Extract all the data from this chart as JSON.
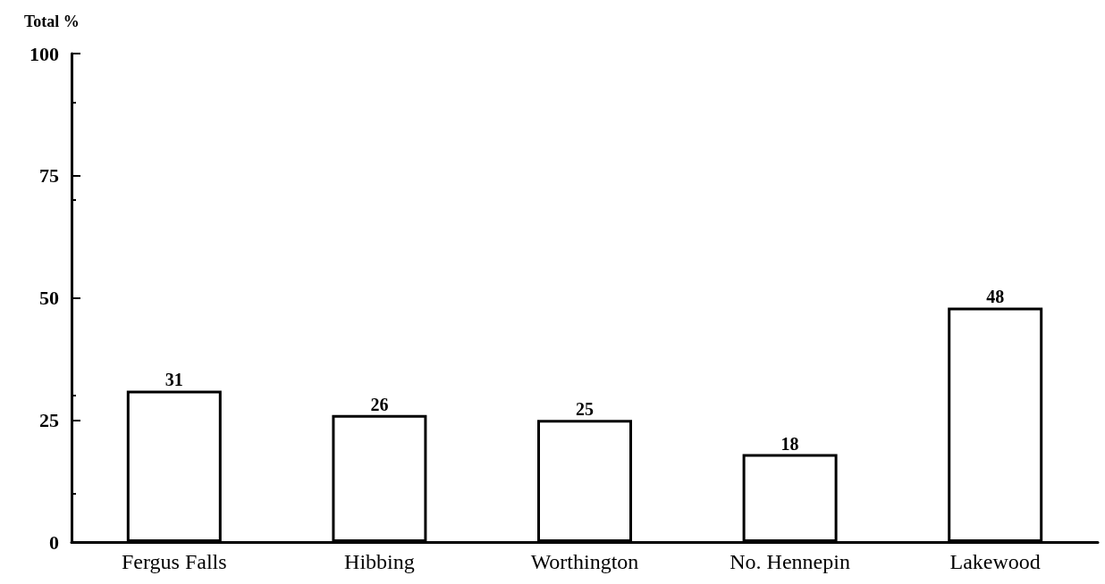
{
  "chart_data": {
    "type": "bar",
    "ylabel": "Total %",
    "categories": [
      "Fergus Falls",
      "Hibbing",
      "Worthington",
      "No. Hennepin",
      "Lakewood"
    ],
    "values": [
      31,
      26,
      25,
      18,
      48
    ],
    "color": "#ffffff",
    "ylim": [
      0,
      100
    ],
    "yticks": [
      0,
      25,
      50,
      75,
      100
    ],
    "data_labels": true,
    "grid": false
  }
}
